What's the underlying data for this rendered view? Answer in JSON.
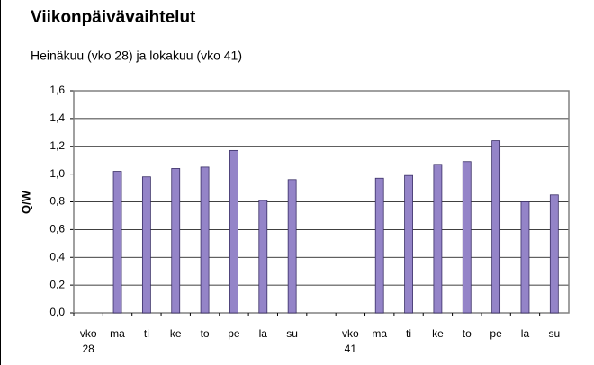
{
  "chart_data": {
    "type": "bar",
    "title": "Viikonpäivävaihtelut",
    "subtitle": "Heinäkuu (vko 28) ja lokakuu (vko 41)",
    "y_label": "Q/W",
    "categories": [
      "vko 28",
      "ma",
      "ti",
      "ke",
      "to",
      "pe",
      "la",
      "su",
      null,
      "vko 41",
      "ma",
      "ti",
      "ke",
      "to",
      "pe",
      "la",
      "su"
    ],
    "values": [
      null,
      1.02,
      0.98,
      1.04,
      1.05,
      1.17,
      0.81,
      0.96,
      null,
      null,
      0.97,
      0.99,
      1.07,
      1.09,
      1.24,
      0.8,
      0.85
    ],
    "color": "#9484c8",
    "ylim": [
      0,
      1.6
    ],
    "yticks": [
      {
        "value": 0,
        "label": "0,0"
      },
      {
        "value": 0.2,
        "label": "0,2"
      },
      {
        "value": 0.4,
        "label": "0,4"
      },
      {
        "value": 0.6,
        "label": "0,6"
      },
      {
        "value": 0.8,
        "label": "0,8"
      },
      {
        "value": 1.0,
        "label": "1,0"
      },
      {
        "value": 1.2,
        "label": "1,2"
      },
      {
        "value": 1.4,
        "label": "1,4"
      },
      {
        "value": 1.6,
        "label": "1,6"
      }
    ],
    "grid": true
  }
}
